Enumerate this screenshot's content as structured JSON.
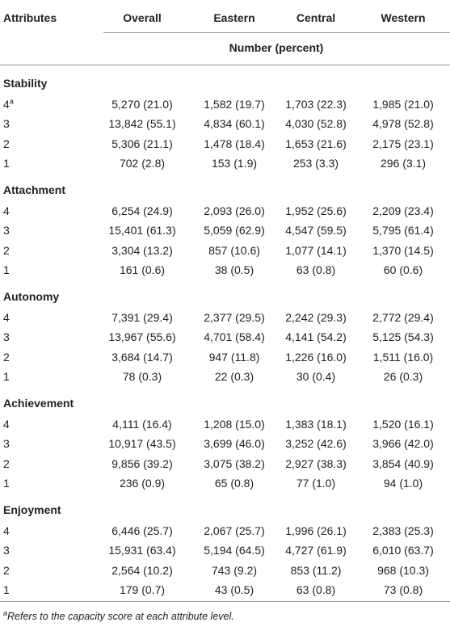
{
  "table": {
    "columns": [
      "Attributes",
      "Overall",
      "Eastern",
      "Central",
      "Western"
    ],
    "subheader": "Number (percent)",
    "sections": [
      {
        "title": "Stability",
        "rows": [
          {
            "level": "4",
            "sup": "a",
            "cells": [
              "5,270 (21.0)",
              "1,582 (19.7)",
              "1,703 (22.3)",
              "1,985 (21.0)"
            ]
          },
          {
            "level": "3",
            "cells": [
              "13,842 (55.1)",
              "4,834 (60.1)",
              "4,030 (52.8)",
              "4,978 (52.8)"
            ]
          },
          {
            "level": "2",
            "cells": [
              "5,306 (21.1)",
              "1,478 (18.4)",
              "1,653 (21.6)",
              "2,175 (23.1)"
            ]
          },
          {
            "level": "1",
            "cells": [
              "702 (2.8)",
              "153 (1.9)",
              "253 (3.3)",
              "296 (3.1)"
            ]
          }
        ]
      },
      {
        "title": "Attachment",
        "rows": [
          {
            "level": "4",
            "cells": [
              "6,254 (24.9)",
              "2,093 (26.0)",
              "1,952 (25.6)",
              "2,209 (23.4)"
            ]
          },
          {
            "level": "3",
            "cells": [
              "15,401 (61.3)",
              "5,059 (62.9)",
              "4,547 (59.5)",
              "5,795 (61.4)"
            ]
          },
          {
            "level": "2",
            "cells": [
              "3,304 (13.2)",
              "857 (10.6)",
              "1,077 (14.1)",
              "1,370 (14.5)"
            ]
          },
          {
            "level": "1",
            "cells": [
              "161 (0.6)",
              "38 (0.5)",
              "63 (0.8)",
              "60 (0.6)"
            ]
          }
        ]
      },
      {
        "title": "Autonomy",
        "rows": [
          {
            "level": "4",
            "cells": [
              "7,391 (29.4)",
              "2,377 (29.5)",
              "2,242 (29.3)",
              "2,772 (29.4)"
            ]
          },
          {
            "level": "3",
            "cells": [
              "13,967 (55.6)",
              "4,701 (58.4)",
              "4,141 (54.2)",
              "5,125 (54.3)"
            ]
          },
          {
            "level": "2",
            "cells": [
              "3,684 (14.7)",
              "947 (11.8)",
              "1,226 (16.0)",
              "1,511 (16.0)"
            ]
          },
          {
            "level": "1",
            "cells": [
              "78 (0.3)",
              "22 (0.3)",
              "30 (0.4)",
              "26 (0.3)"
            ]
          }
        ]
      },
      {
        "title": "Achievement",
        "rows": [
          {
            "level": "4",
            "cells": [
              "4,111 (16.4)",
              "1,208 (15.0)",
              "1,383 (18.1)",
              "1,520 (16.1)"
            ]
          },
          {
            "level": "3",
            "cells": [
              "10,917 (43.5)",
              "3,699 (46.0)",
              "3,252 (42.6)",
              "3,966 (42.0)"
            ]
          },
          {
            "level": "2",
            "cells": [
              "9,856 (39.2)",
              "3,075 (38.2)",
              "2,927 (38.3)",
              "3,854 (40.9)"
            ]
          },
          {
            "level": "1",
            "cells": [
              "236 (0.9)",
              "65 (0.8)",
              "77 (1.0)",
              "94 (1.0)"
            ]
          }
        ]
      },
      {
        "title": "Enjoyment",
        "rows": [
          {
            "level": "4",
            "cells": [
              "6,446 (25.7)",
              "2,067 (25.7)",
              "1,996 (26.1)",
              "2,383 (25.3)"
            ]
          },
          {
            "level": "3",
            "cells": [
              "15,931 (63.4)",
              "5,194 (64.5)",
              "4,727 (61.9)",
              "6,010 (63.7)"
            ]
          },
          {
            "level": "2",
            "cells": [
              "2,564 (10.2)",
              "743 (9.2)",
              "853 (11.2)",
              "968 (10.3)"
            ]
          },
          {
            "level": "1",
            "cells": [
              "179 (0.7)",
              "43 (0.5)",
              "63 (0.8)",
              "73 (0.8)"
            ]
          }
        ]
      }
    ]
  },
  "footnote": {
    "mark": "a",
    "text": "Refers to the capacity score at each attribute level."
  }
}
